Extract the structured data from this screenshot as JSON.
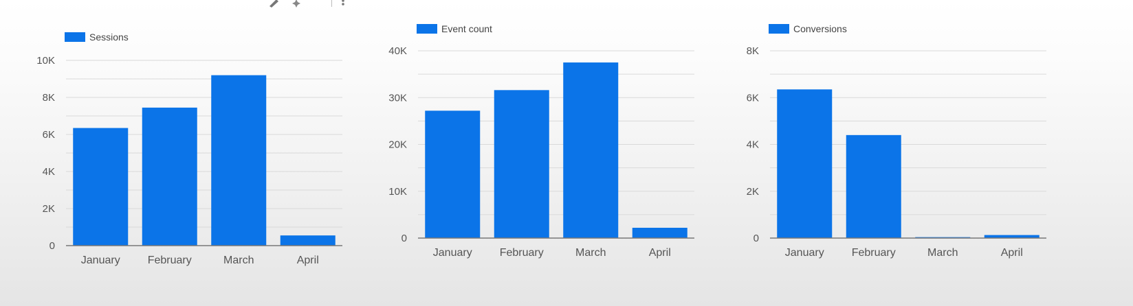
{
  "theme": {
    "bar_color": "#0b74e8",
    "grid_color": "#d9d9d9",
    "axis_color": "#777777"
  },
  "toolbar": {
    "icons": [
      "edit-icon",
      "sparkle-icon",
      "more-vert-icon"
    ]
  },
  "chart_data": [
    {
      "type": "bar",
      "categories": [
        "January",
        "February",
        "March",
        "April"
      ],
      "series": [
        {
          "name": "Sessions",
          "values": [
            6350,
            7450,
            9200,
            550
          ]
        }
      ],
      "ylim": [
        0,
        10000
      ],
      "yticks": [
        {
          "value": 0,
          "label": "0"
        },
        {
          "value": 2000,
          "label": "2K"
        },
        {
          "value": 4000,
          "label": "4K"
        },
        {
          "value": 6000,
          "label": "6K"
        },
        {
          "value": 8000,
          "label": "8K"
        },
        {
          "value": 10000,
          "label": "10K"
        }
      ],
      "grid": true,
      "legend": "top-left"
    },
    {
      "type": "bar",
      "categories": [
        "January",
        "February",
        "March",
        "April"
      ],
      "series": [
        {
          "name": "Event count",
          "values": [
            27200,
            31600,
            37500,
            2200
          ]
        }
      ],
      "ylim": [
        0,
        40000
      ],
      "yticks": [
        {
          "value": 0,
          "label": "0"
        },
        {
          "value": 10000,
          "label": "10K"
        },
        {
          "value": 20000,
          "label": "20K"
        },
        {
          "value": 30000,
          "label": "30K"
        },
        {
          "value": 40000,
          "label": "40K"
        }
      ],
      "grid": true,
      "legend": "top-left"
    },
    {
      "type": "bar",
      "categories": [
        "January",
        "February",
        "March",
        "April"
      ],
      "series": [
        {
          "name": "Conversions",
          "values": [
            6350,
            4400,
            40,
            130
          ]
        }
      ],
      "ylim": [
        0,
        8000
      ],
      "yticks": [
        {
          "value": 0,
          "label": "0"
        },
        {
          "value": 2000,
          "label": "2K"
        },
        {
          "value": 4000,
          "label": "4K"
        },
        {
          "value": 6000,
          "label": "6K"
        },
        {
          "value": 8000,
          "label": "8K"
        }
      ],
      "grid": true,
      "legend": "top-left"
    }
  ]
}
